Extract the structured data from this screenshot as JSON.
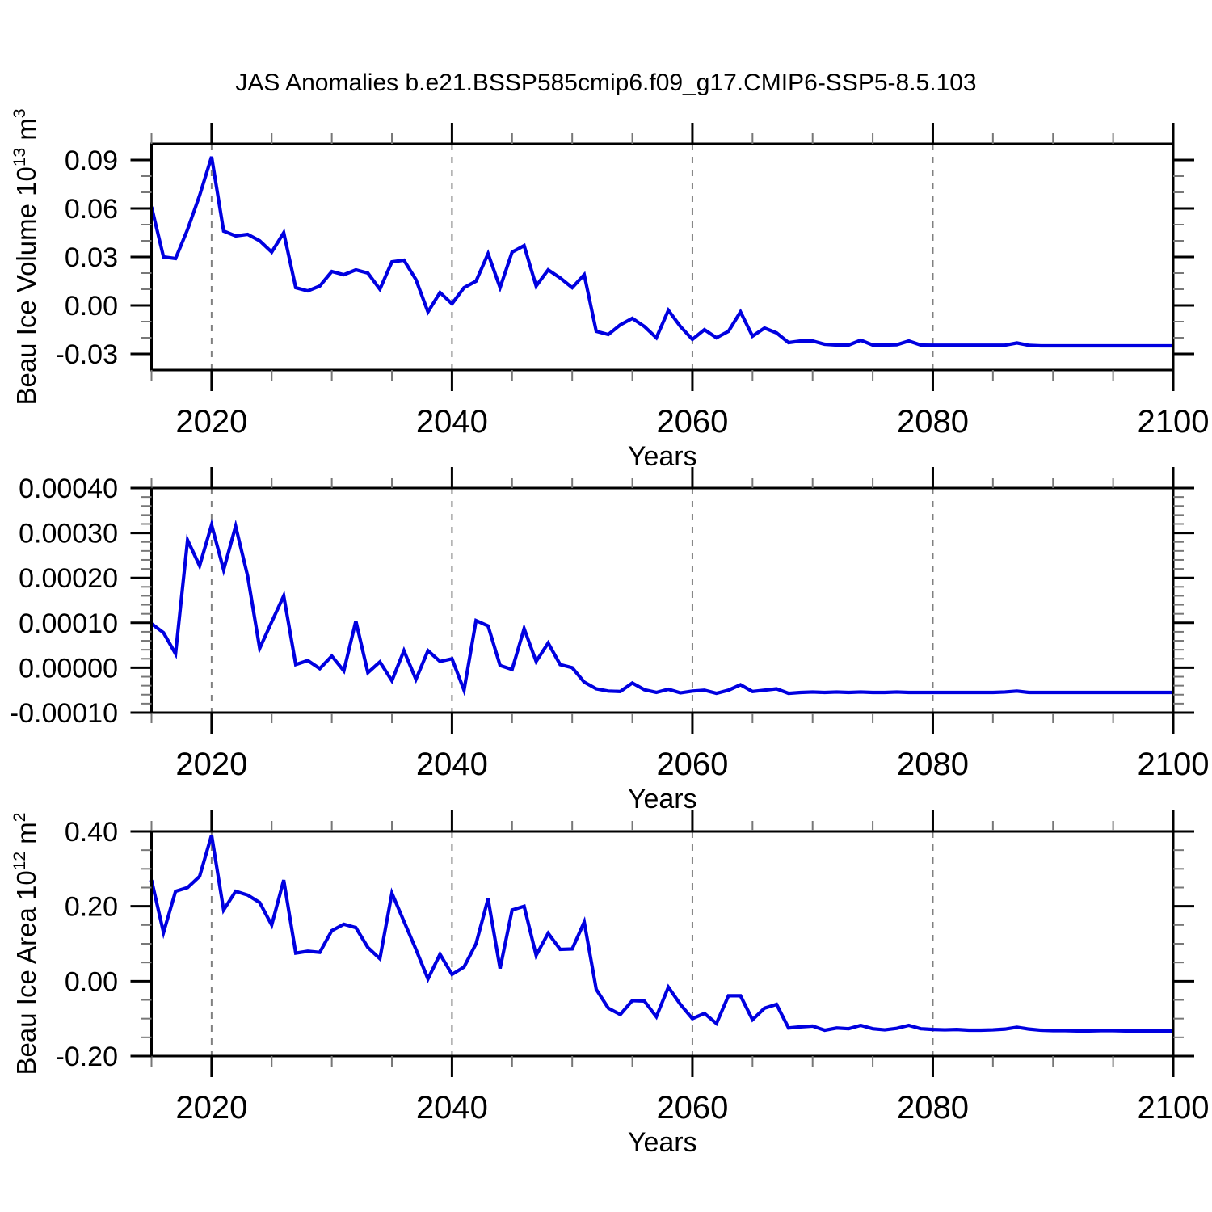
{
  "title": "JAS Anomalies b.e21.BSSP585cmip6.f09_g17.CMIP6-SSP5-8.5.103",
  "colors": {
    "line": "#0000e0",
    "grid": "#808080",
    "frame": "#000000",
    "minor_tick": "#777777"
  },
  "years": [
    2015,
    2016,
    2017,
    2018,
    2019,
    2020,
    2021,
    2022,
    2023,
    2024,
    2025,
    2026,
    2027,
    2028,
    2029,
    2030,
    2031,
    2032,
    2033,
    2034,
    2035,
    2036,
    2037,
    2038,
    2039,
    2040,
    2041,
    2042,
    2043,
    2044,
    2045,
    2046,
    2047,
    2048,
    2049,
    2050,
    2051,
    2052,
    2053,
    2054,
    2055,
    2056,
    2057,
    2058,
    2059,
    2060,
    2061,
    2062,
    2063,
    2064,
    2065,
    2066,
    2067,
    2068,
    2069,
    2070,
    2071,
    2072,
    2073,
    2074,
    2075,
    2076,
    2077,
    2078,
    2079,
    2080,
    2081,
    2082,
    2083,
    2084,
    2085,
    2086,
    2087,
    2088,
    2089,
    2090,
    2091,
    2092,
    2093,
    2094,
    2095,
    2096,
    2097,
    2098,
    2099,
    2100
  ],
  "chart_data": [
    {
      "type": "line",
      "xlabel": "Years",
      "ylabel": "Beau Ice Volume 10^13 m^3",
      "ylabel_rich": [
        {
          "t": "Beau Ice Volume 10"
        },
        {
          "t": "13",
          "sup": true
        },
        {
          "t": " m"
        },
        {
          "t": "3",
          "sup": true
        }
      ],
      "xlim": [
        2015,
        2100
      ],
      "ylim": [
        -0.04,
        0.1
      ],
      "x_major_ticks": [
        2020,
        2040,
        2060,
        2080,
        2100
      ],
      "x_tick_labels": [
        "2020",
        "2040",
        "2060",
        "2080",
        "2100"
      ],
      "x_minor_step": 5,
      "y_major_ticks": [
        0.09,
        0.06,
        0.03,
        0.0,
        -0.03
      ],
      "y_tick_labels": [
        "0.09",
        "0.06",
        "0.03",
        "0.00",
        "-0.03"
      ],
      "y_minor_step": 0.01,
      "grid": "vertical-dashed-at-x-majors",
      "legend": "none",
      "values": [
        0.061,
        0.03,
        0.029,
        0.047,
        0.068,
        0.092,
        0.046,
        0.043,
        0.044,
        0.04,
        0.033,
        0.045,
        0.011,
        0.009,
        0.012,
        0.021,
        0.019,
        0.022,
        0.02,
        0.01,
        0.027,
        0.028,
        0.016,
        -0.004,
        0.008,
        0.001,
        0.011,
        0.015,
        0.032,
        0.011,
        0.033,
        0.037,
        0.012,
        0.022,
        0.017,
        0.011,
        0.019,
        -0.016,
        -0.018,
        -0.012,
        -0.008,
        -0.013,
        -0.02,
        -0.003,
        -0.013,
        -0.021,
        -0.015,
        -0.02,
        -0.016,
        -0.004,
        -0.019,
        -0.014,
        -0.017,
        -0.023,
        -0.022,
        -0.022,
        -0.024,
        -0.0245,
        -0.0245,
        -0.0215,
        -0.0245,
        -0.0245,
        -0.0243,
        -0.022,
        -0.0245,
        -0.0246,
        -0.0246,
        -0.0246,
        -0.0246,
        -0.0246,
        -0.0246,
        -0.0246,
        -0.0232,
        -0.0247,
        -0.025,
        -0.025,
        -0.025,
        -0.025,
        -0.025,
        -0.025,
        -0.025,
        -0.025,
        -0.025,
        -0.025,
        -0.025,
        -0.025
      ]
    },
    {
      "type": "line",
      "xlabel": "Years",
      "ylabel": "",
      "ylabel_rich": [],
      "xlim": [
        2015,
        2100
      ],
      "ylim": [
        -0.0001,
        0.0004
      ],
      "x_major_ticks": [
        2020,
        2040,
        2060,
        2080,
        2100
      ],
      "x_tick_labels": [
        "2020",
        "2040",
        "2060",
        "2080",
        "2100"
      ],
      "x_minor_step": 5,
      "y_major_ticks": [
        0.0004,
        0.0003,
        0.0002,
        0.0001,
        0.0,
        -0.0001
      ],
      "y_tick_labels": [
        "0.00040",
        "0.00030",
        "0.00020",
        "0.00010",
        "0.00000",
        "-0.00010"
      ],
      "y_minor_step": 2e-05,
      "grid": "vertical-dashed-at-x-majors",
      "legend": "none",
      "values": [
        9.8e-05,
        7.8e-05,
        3.1e-05,
        0.000284,
        0.000227,
        0.000318,
        0.000218,
        0.000315,
        0.000204,
        4.3e-05,
        0.000102,
        0.00016,
        7e-06,
        1.6e-05,
        -2e-06,
        2.6e-05,
        -7e-06,
        0.000104,
        -1.1e-05,
        1.3e-05,
        -2.9e-05,
        3.8e-05,
        -2.6e-05,
        3.8e-05,
        1.4e-05,
        2e-05,
        -5e-05,
        0.000105,
        9.3e-05,
        5e-06,
        -4e-06,
        8.7e-05,
        1.4e-05,
        5.5e-05,
        7e-06,
        0.0,
        -3.2e-05,
        -4.7e-05,
        -5.2e-05,
        -5.3e-05,
        -3.4e-05,
        -4.9e-05,
        -5.5e-05,
        -4.8e-05,
        -5.6e-05,
        -5.2e-05,
        -5e-05,
        -5.7e-05,
        -5e-05,
        -3.8e-05,
        -5.3e-05,
        -5e-05,
        -4.7e-05,
        -5.7e-05,
        -5.5e-05,
        -5.4e-05,
        -5.5e-05,
        -5.4e-05,
        -5.5e-05,
        -5.4e-05,
        -5.5e-05,
        -5.5e-05,
        -5.4e-05,
        -5.5e-05,
        -5.5e-05,
        -5.5e-05,
        -5.5e-05,
        -5.5e-05,
        -5.5e-05,
        -5.5e-05,
        -5.5e-05,
        -5.4e-05,
        -5.2e-05,
        -5.5e-05,
        -5.5e-05,
        -5.5e-05,
        -5.5e-05,
        -5.5e-05,
        -5.5e-05,
        -5.5e-05,
        -5.5e-05,
        -5.5e-05,
        -5.5e-05,
        -5.5e-05,
        -5.5e-05,
        -5.5e-05
      ]
    },
    {
      "type": "line",
      "xlabel": "Years",
      "ylabel": "Beau Ice Area 10^12 m^2",
      "ylabel_rich": [
        {
          "t": "Beau Ice Area 10"
        },
        {
          "t": "12",
          "sup": true
        },
        {
          "t": " m"
        },
        {
          "t": "2",
          "sup": true
        }
      ],
      "xlim": [
        2015,
        2100
      ],
      "ylim": [
        -0.2,
        0.4
      ],
      "x_major_ticks": [
        2020,
        2040,
        2060,
        2080,
        2100
      ],
      "x_tick_labels": [
        "2020",
        "2040",
        "2060",
        "2080",
        "2100"
      ],
      "x_minor_step": 5,
      "y_major_ticks": [
        0.4,
        0.2,
        0.0,
        -0.2
      ],
      "y_tick_labels": [
        "0.40",
        "0.20",
        "0.00",
        "-0.20"
      ],
      "y_minor_step": 0.05,
      "grid": "vertical-dashed-at-x-majors",
      "legend": "none",
      "values": [
        0.27,
        0.13,
        0.24,
        0.25,
        0.28,
        0.39,
        0.19,
        0.24,
        0.23,
        0.21,
        0.15,
        0.27,
        0.075,
        0.08,
        0.077,
        0.135,
        0.152,
        0.143,
        0.09,
        0.06,
        0.235,
        0.16,
        0.085,
        0.006,
        0.072,
        0.018,
        0.038,
        0.1,
        0.22,
        0.034,
        0.19,
        0.2,
        0.069,
        0.128,
        0.085,
        0.086,
        0.158,
        -0.022,
        -0.072,
        -0.089,
        -0.052,
        -0.053,
        -0.095,
        -0.016,
        -0.062,
        -0.1,
        -0.086,
        -0.113,
        -0.039,
        -0.039,
        -0.103,
        -0.072,
        -0.062,
        -0.125,
        -0.122,
        -0.12,
        -0.131,
        -0.125,
        -0.127,
        -0.118,
        -0.127,
        -0.13,
        -0.126,
        -0.118,
        -0.127,
        -0.129,
        -0.13,
        -0.129,
        -0.131,
        -0.131,
        -0.13,
        -0.128,
        -0.123,
        -0.128,
        -0.131,
        -0.132,
        -0.132,
        -0.133,
        -0.133,
        -0.132,
        -0.132,
        -0.133,
        -0.133,
        -0.133,
        -0.133,
        -0.133
      ]
    }
  ]
}
